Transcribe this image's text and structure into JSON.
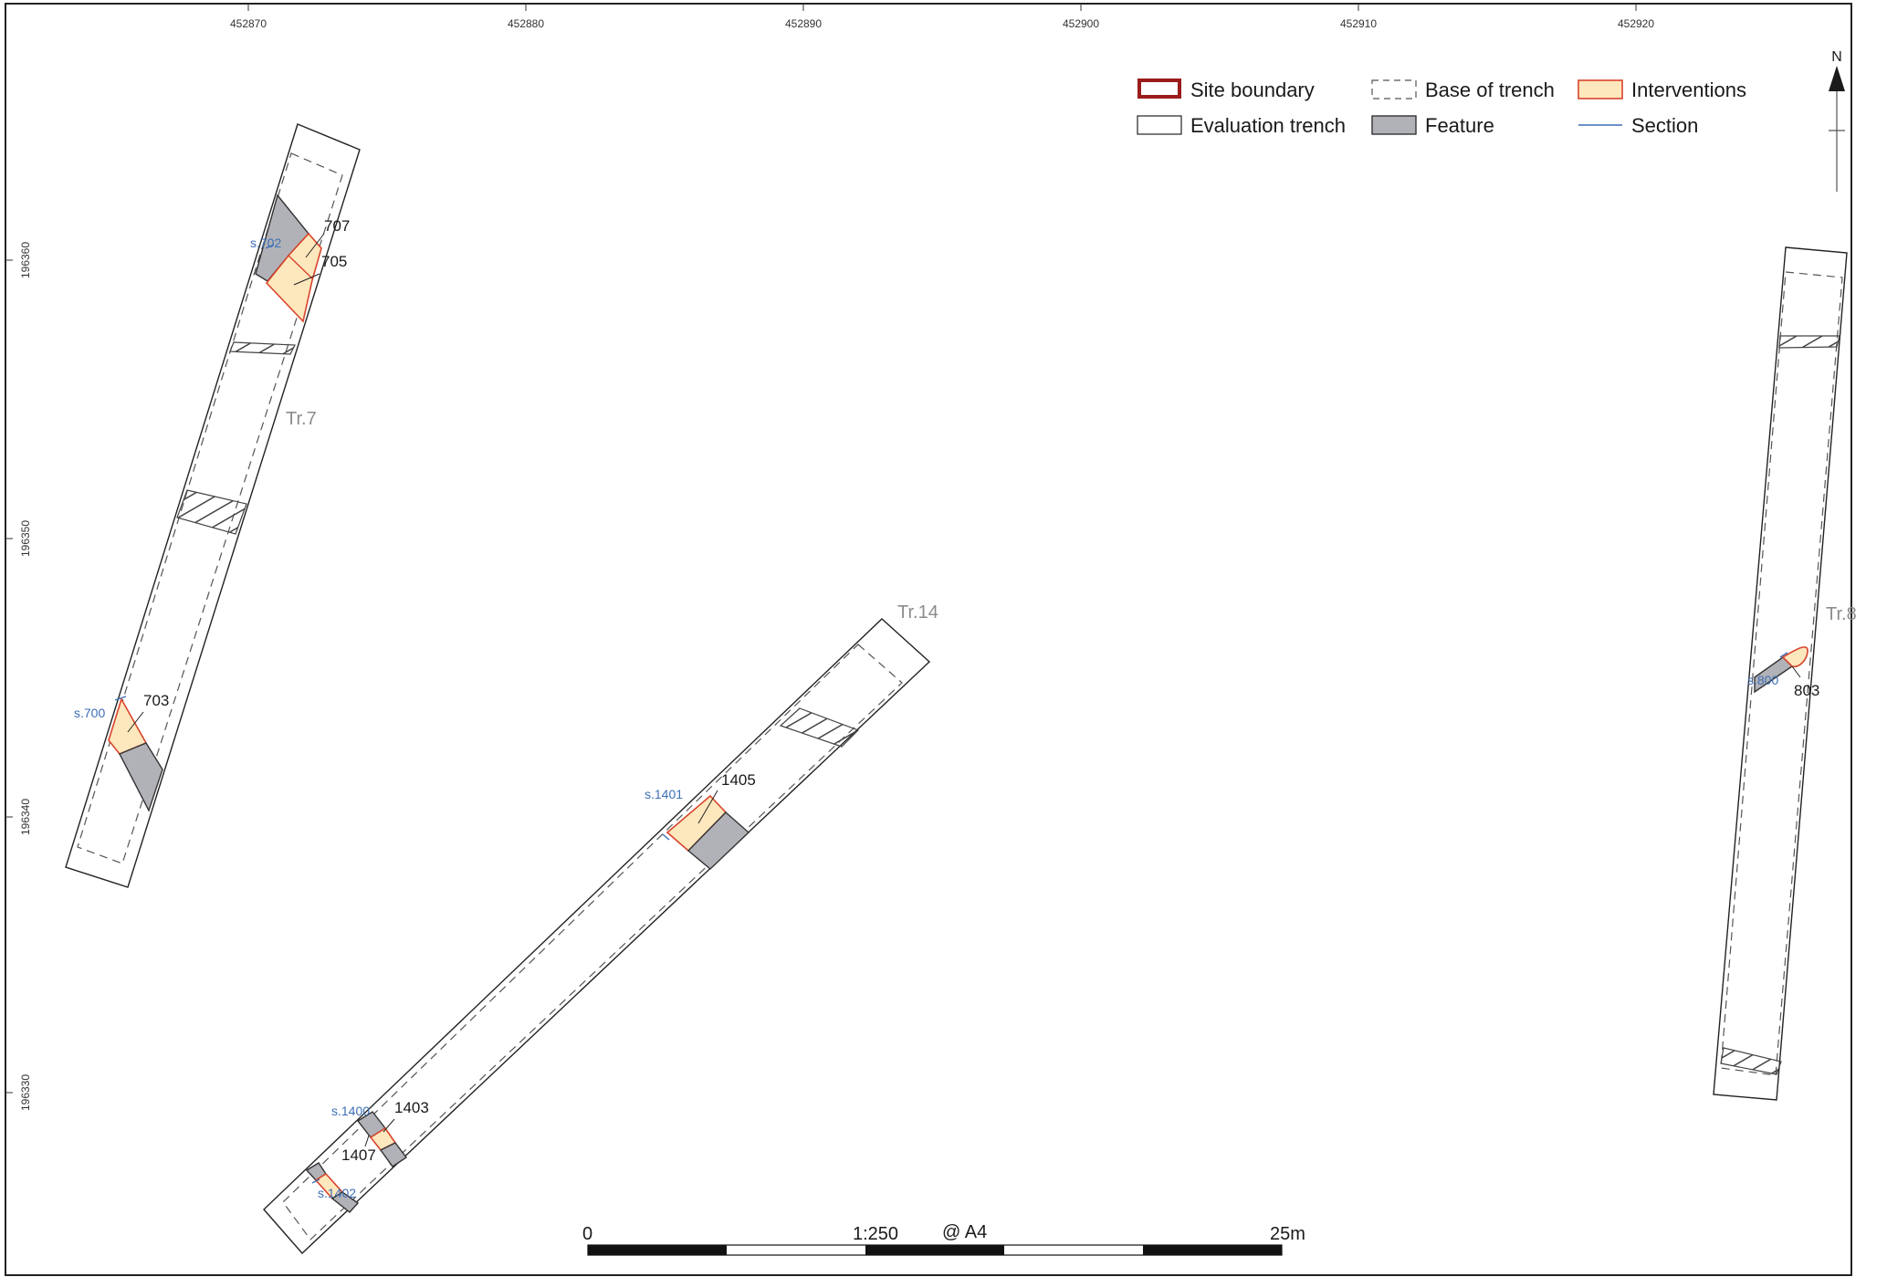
{
  "grid": {
    "eastings": [
      "452870",
      "452880",
      "452890",
      "452900",
      "452910",
      "452920"
    ],
    "northings": [
      "196360",
      "196350",
      "196340",
      "196330"
    ]
  },
  "legend": {
    "site_boundary": "Site boundary",
    "base_of_trench": "Base of trench",
    "interventions": "Interventions",
    "evaluation_trench": "Evaluation trench",
    "feature": "Feature",
    "section": "Section"
  },
  "north": {
    "label": "N"
  },
  "trenches": {
    "tr7": "Tr.7",
    "tr14": "Tr.14",
    "tr8": "Tr.8"
  },
  "features": {
    "f707": "707",
    "f705": "705",
    "f703": "703",
    "f1405": "1405",
    "f1403": "1403",
    "f1407": "1407",
    "f803": "803"
  },
  "sections": {
    "s702": "s.702",
    "s700": "s.700",
    "s1401": "s.1401",
    "s1400": "s.1400",
    "s1402": "s.1402",
    "s800": "s.800"
  },
  "scale": {
    "zero": "0",
    "ratio": "1:250",
    "paper": "@ A4",
    "length": "25m"
  },
  "colors": {
    "site_boundary": "#9b1c1c",
    "intervention_fill": "#fde7bd",
    "intervention_stroke": "#d9442c",
    "feature_fill": "#b1b2b7",
    "section": "#3d6fb6",
    "trench_label": "#8c8c8c"
  }
}
